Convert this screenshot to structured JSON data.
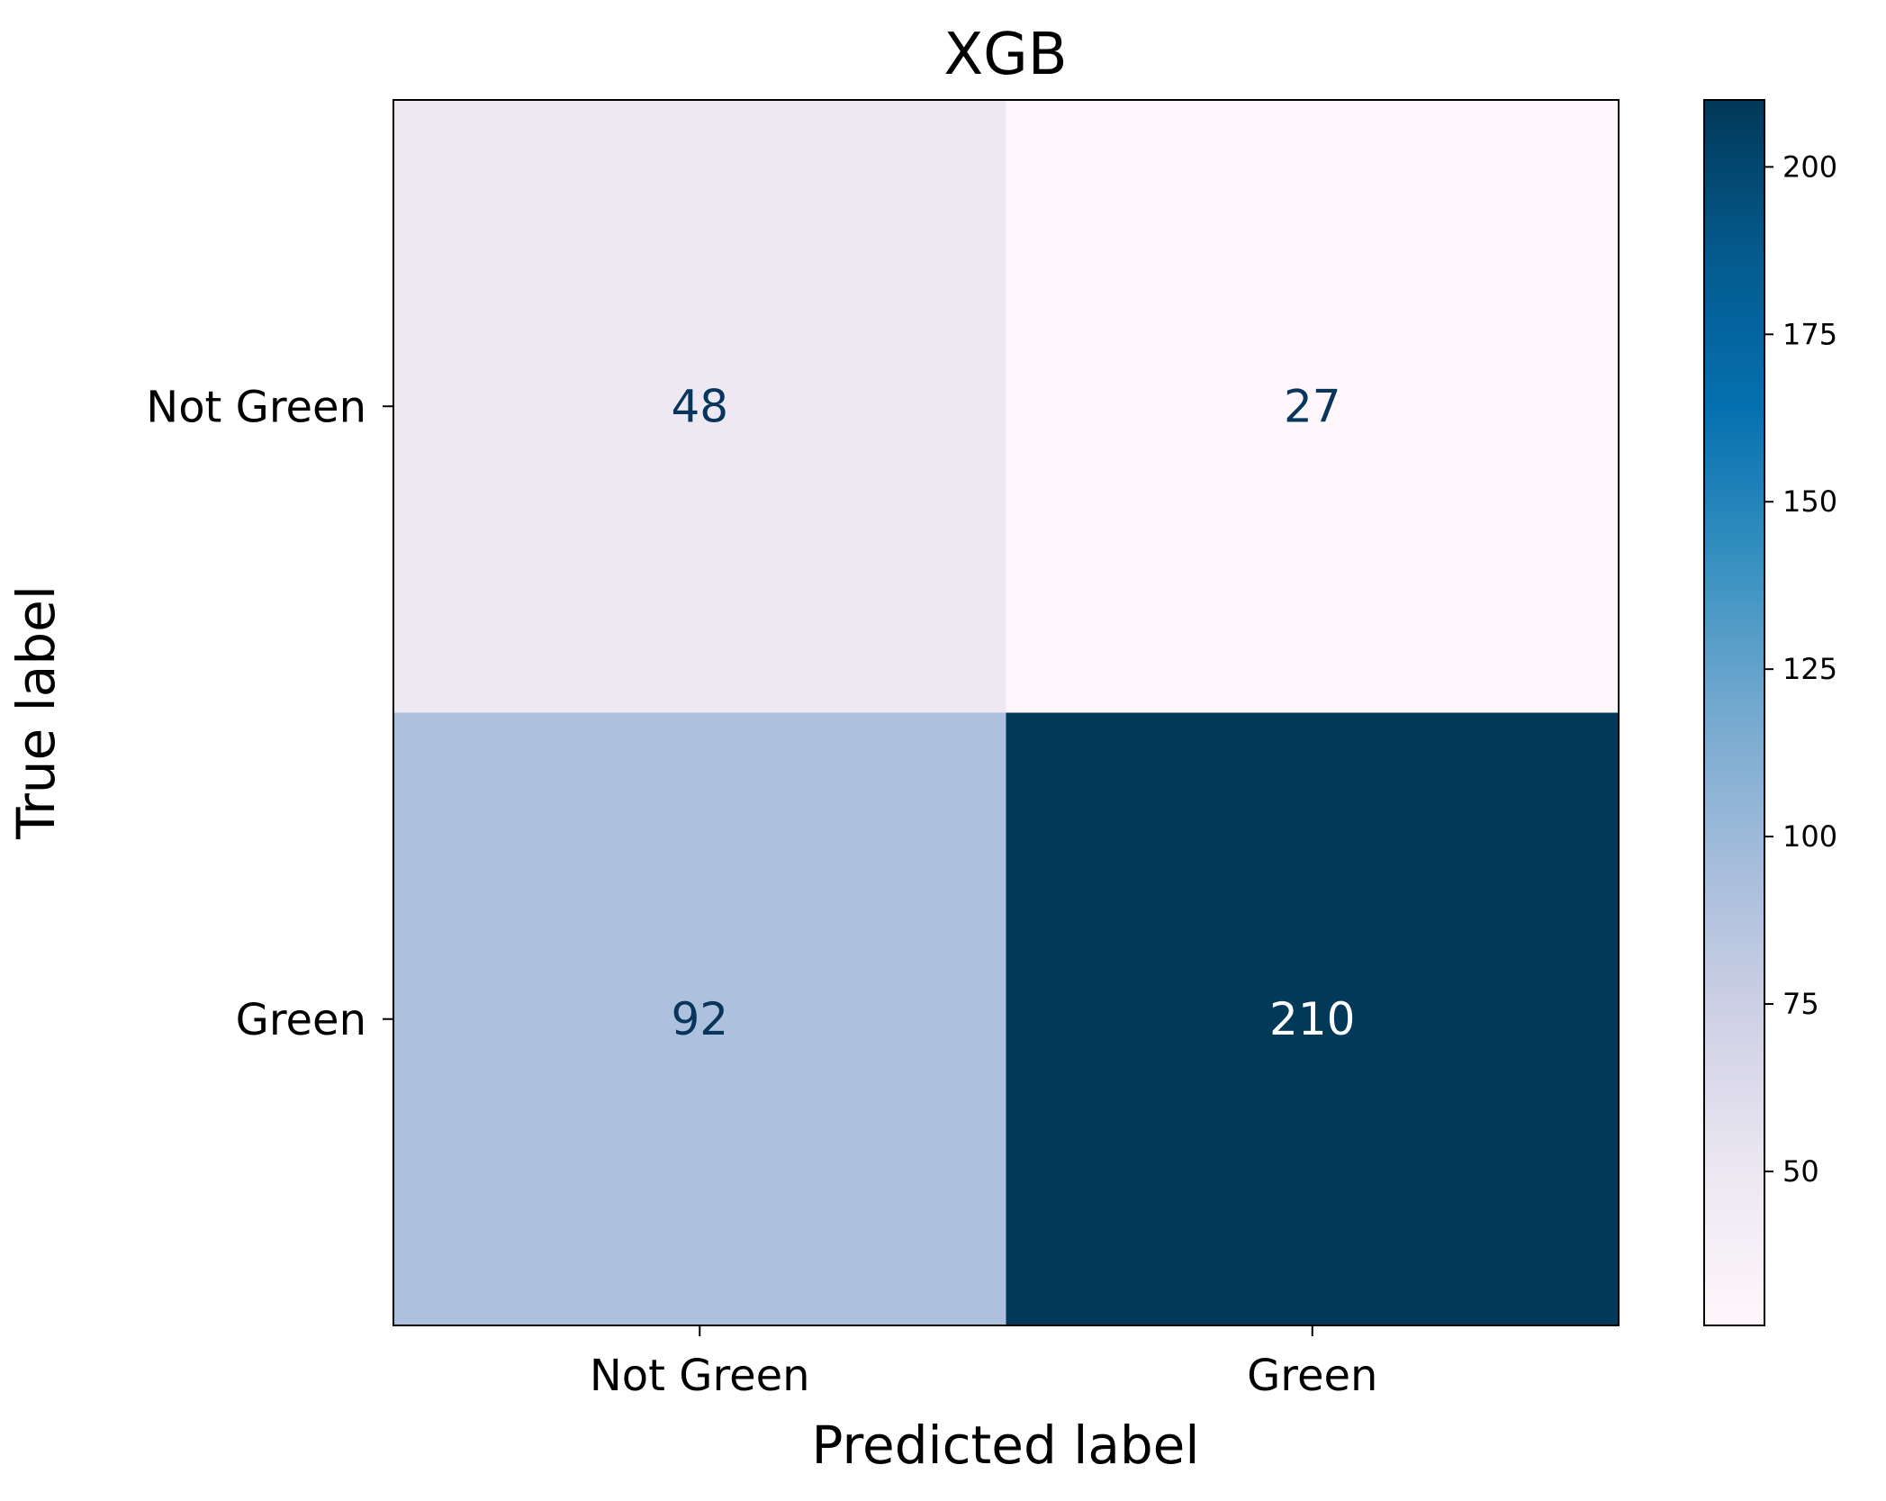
{
  "chart_data": {
    "type": "heatmap",
    "title": "XGB",
    "xlabel": "Predicted label",
    "ylabel": "True label",
    "x_categories": [
      "Not Green",
      "Green"
    ],
    "y_categories": [
      "Not Green",
      "Green"
    ],
    "matrix": [
      [
        48,
        27
      ],
      [
        92,
        210
      ]
    ],
    "value_labels": [
      [
        "48",
        "27"
      ],
      [
        "92",
        "210"
      ]
    ],
    "colorbar": {
      "min": 27,
      "max": 210,
      "ticks": [
        50,
        75,
        100,
        125,
        150,
        175,
        200
      ],
      "tick_labels": [
        "50",
        "75",
        "100",
        "125",
        "150",
        "175",
        "200"
      ]
    },
    "colormap": "PuBu",
    "colormap_stops": [
      "#fff7fb",
      "#ece7f2",
      "#d0d1e6",
      "#a6bddb",
      "#74a9cf",
      "#3690c0",
      "#0570b0",
      "#045a8d",
      "#023858"
    ],
    "text_color_light_cells": "#08355b",
    "text_color_dark_cells": "#ffffff",
    "grid": false
  }
}
